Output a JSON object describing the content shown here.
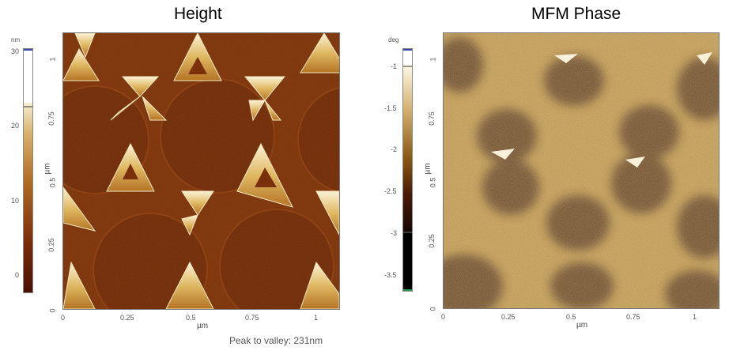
{
  "panels": [
    {
      "title": "Height",
      "colorbar_unit": "nm",
      "colorbar_ticks": [
        "30",
        "20",
        "10",
        "0"
      ],
      "axis_unit_x": "µm",
      "axis_unit_y": "µm",
      "x_ticks": [
        "0",
        "0.25",
        "0.5",
        "0.75",
        "1"
      ],
      "y_ticks": [
        "1",
        "0.75",
        "0.5",
        "0.25",
        "0"
      ],
      "colors": [
        "#4a0f06",
        "#8a3a0a",
        "#c08530",
        "#f4ecd0",
        "#ffffff"
      ]
    },
    {
      "title": "MFM Phase",
      "colorbar_unit": "deg",
      "colorbar_ticks": [
        "-1",
        "-1.5",
        "-2",
        "-2.5",
        "-3",
        "-3.5"
      ],
      "axis_unit_x": "µm",
      "axis_unit_y": "µm",
      "x_ticks": [
        "0",
        "0.25",
        "0.5",
        "0.75",
        "1"
      ],
      "y_ticks": [
        "1",
        "0.75",
        "0.5",
        "0.25",
        "0"
      ],
      "colors": [
        "#000000",
        "#3a1404",
        "#8a5a12",
        "#d4b070",
        "#fdf8e4"
      ]
    }
  ],
  "footer_text": "Peak to valley: 231nm"
}
